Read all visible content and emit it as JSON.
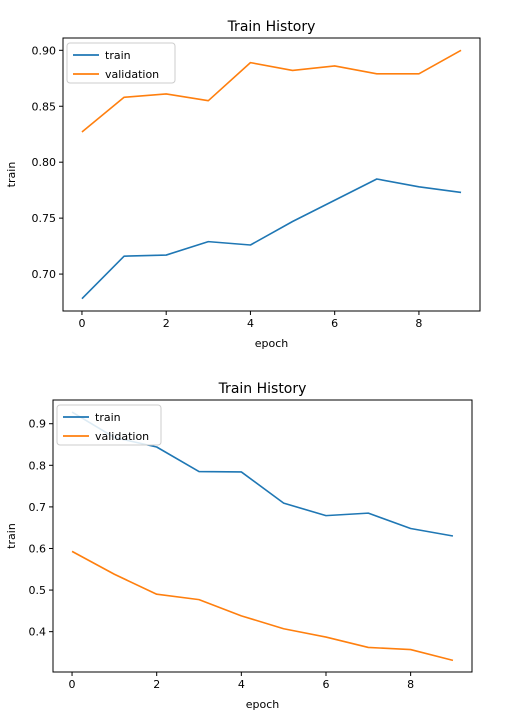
{
  "colors": {
    "train": "#1f77b4",
    "validation": "#ff7f0e"
  },
  "chart_data": [
    {
      "type": "line",
      "title": "Train History",
      "xlabel": "epoch",
      "ylabel": "train",
      "x": [
        0,
        1,
        2,
        3,
        4,
        5,
        6,
        7,
        8,
        9
      ],
      "xlim": [
        -0.45,
        9.45
      ],
      "ylim": [
        0.667,
        0.911
      ],
      "xticks": [
        0,
        2,
        4,
        6,
        8
      ],
      "xtick_labels": [
        "0",
        "2",
        "4",
        "6",
        "8"
      ],
      "yticks": [
        0.7,
        0.75,
        0.8,
        0.85,
        0.9
      ],
      "ytick_labels": [
        "0.70",
        "0.75",
        "0.80",
        "0.85",
        "0.90"
      ],
      "legend_position": "upper-left",
      "grid": false,
      "series": [
        {
          "name": "train",
          "color": "#1f77b4",
          "values": [
            0.678,
            0.716,
            0.717,
            0.729,
            0.726,
            0.747,
            0.766,
            0.785,
            0.778,
            0.773
          ]
        },
        {
          "name": "validation",
          "color": "#ff7f0e",
          "values": [
            0.827,
            0.858,
            0.861,
            0.855,
            0.889,
            0.882,
            0.886,
            0.879,
            0.879,
            0.9
          ]
        }
      ]
    },
    {
      "type": "line",
      "title": "Train History",
      "xlabel": "epoch",
      "ylabel": "train",
      "x": [
        0,
        1,
        2,
        3,
        4,
        5,
        6,
        7,
        8,
        9
      ],
      "xlim": [
        -0.45,
        9.45
      ],
      "ylim": [
        0.303,
        0.957
      ],
      "xticks": [
        0,
        2,
        4,
        6,
        8
      ],
      "xtick_labels": [
        "0",
        "2",
        "4",
        "6",
        "8"
      ],
      "yticks": [
        0.4,
        0.5,
        0.6,
        0.7,
        0.8,
        0.9
      ],
      "ytick_labels": [
        "0.4",
        "0.5",
        "0.6",
        "0.7",
        "0.8",
        "0.9"
      ],
      "legend_position": "upper-left",
      "grid": false,
      "series": [
        {
          "name": "train",
          "color": "#1f77b4",
          "values": [
            0.928,
            0.867,
            0.844,
            0.785,
            0.784,
            0.709,
            0.679,
            0.685,
            0.648,
            0.63
          ]
        },
        {
          "name": "validation",
          "color": "#ff7f0e",
          "values": [
            0.593,
            0.538,
            0.49,
            0.477,
            0.438,
            0.407,
            0.387,
            0.362,
            0.357,
            0.331
          ]
        }
      ]
    }
  ]
}
